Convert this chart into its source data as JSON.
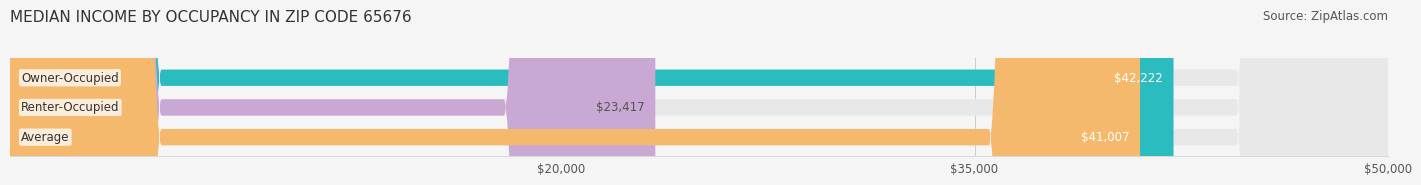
{
  "title": "MEDIAN INCOME BY OCCUPANCY IN ZIP CODE 65676",
  "source": "Source: ZipAtlas.com",
  "categories": [
    "Owner-Occupied",
    "Renter-Occupied",
    "Average"
  ],
  "values": [
    42222,
    23417,
    41007
  ],
  "bar_colors": [
    "#2abcbe",
    "#c9a8d4",
    "#f5b96e"
  ],
  "value_labels": [
    "$42,222",
    "$23,417",
    "$41,007"
  ],
  "label_colors": [
    "#ffffff",
    "#555555",
    "#ffffff"
  ],
  "xlim": [
    0,
    50000
  ],
  "xticks": [
    20000,
    35000,
    50000
  ],
  "xtick_labels": [
    "$20,000",
    "$35,000",
    "$50,000"
  ],
  "bar_height": 0.55,
  "background_color": "#f5f5f5",
  "bar_bg_color": "#e8e8e8",
  "title_fontsize": 11,
  "source_fontsize": 8.5,
  "label_fontsize": 8.5,
  "tick_fontsize": 8.5,
  "category_fontsize": 8.5
}
